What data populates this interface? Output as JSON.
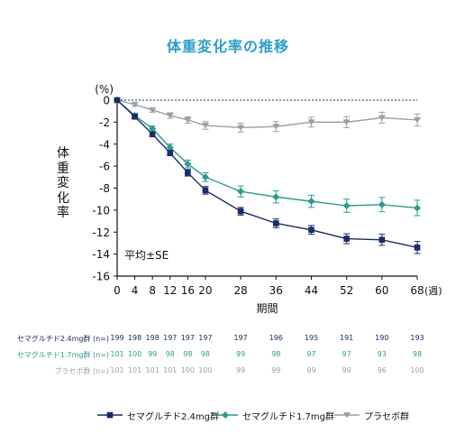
{
  "chart_data": {
    "type": "line",
    "title": "体重変化率の推移",
    "ylabel": "体重変化率",
    "y_unit": "(%)",
    "xlabel": "期間",
    "x_unit": "(週)",
    "annotation": "平均±SE",
    "ylim": [
      -16,
      0
    ],
    "yticks": [
      "0",
      "-2",
      "-4",
      "-6",
      "-8",
      "-10",
      "-12",
      "-14",
      "-16"
    ],
    "xticks": [
      "0",
      "4",
      "8",
      "12",
      "16",
      "20",
      "28",
      "36",
      "44",
      "52",
      "60",
      "68"
    ],
    "reference_line_y": 0,
    "series": [
      {
        "name": "セマグルチド2.4mg群",
        "color": "#1a2a6c",
        "marker": "square",
        "x": [
          0,
          4,
          8,
          12,
          16,
          20,
          28,
          36,
          44,
          52,
          60,
          68
        ],
        "values": [
          0,
          -1.5,
          -3.1,
          -4.8,
          -6.6,
          -8.2,
          -10.1,
          -11.2,
          -11.8,
          -12.6,
          -12.7,
          -13.4
        ],
        "se": [
          0,
          0.15,
          0.2,
          0.25,
          0.3,
          0.35,
          0.35,
          0.4,
          0.4,
          0.45,
          0.5,
          0.55
        ]
      },
      {
        "name": "セマグルチド1.7mg群",
        "color": "#2a9d8f",
        "marker": "diamond",
        "x": [
          0,
          4,
          8,
          12,
          16,
          20,
          28,
          36,
          44,
          52,
          60,
          68
        ],
        "values": [
          0,
          -1.4,
          -2.6,
          -4.3,
          -5.8,
          -7.0,
          -8.3,
          -8.8,
          -9.2,
          -9.6,
          -9.5,
          -9.8
        ],
        "se": [
          0,
          0.2,
          0.25,
          0.3,
          0.35,
          0.4,
          0.5,
          0.55,
          0.55,
          0.6,
          0.65,
          0.7
        ]
      },
      {
        "name": "プラセボ群",
        "color": "#9aa0aa",
        "marker": "triangle-down",
        "x": [
          0,
          4,
          8,
          12,
          16,
          20,
          28,
          36,
          44,
          52,
          60,
          68
        ],
        "values": [
          0,
          -0.4,
          -0.9,
          -1.4,
          -1.8,
          -2.3,
          -2.5,
          -2.4,
          -2.0,
          -2.0,
          -1.6,
          -1.8
        ],
        "se": [
          0,
          0.15,
          0.2,
          0.25,
          0.3,
          0.35,
          0.4,
          0.45,
          0.45,
          0.5,
          0.5,
          0.55
        ]
      }
    ]
  },
  "n_table": [
    {
      "label": "セマグルチド2.4mg群 (n=)",
      "color": "#1a2a6c",
      "values": [
        "199",
        "198",
        "198",
        "197",
        "197",
        "197",
        "197",
        "196",
        "195",
        "191",
        "190",
        "193"
      ]
    },
    {
      "label": "セマグルチド1.7mg群 (n=)",
      "color": "#2a9d8f",
      "values": [
        "101",
        "100",
        "99",
        "98",
        "98",
        "98",
        "99",
        "98",
        "97",
        "97",
        "93",
        "98"
      ]
    },
    {
      "label": "プラセボ群 (n=)",
      "color": "#9aa0aa",
      "values": [
        "101",
        "101",
        "101",
        "101",
        "100",
        "100",
        "99",
        "99",
        "99",
        "99",
        "96",
        "100"
      ]
    }
  ]
}
